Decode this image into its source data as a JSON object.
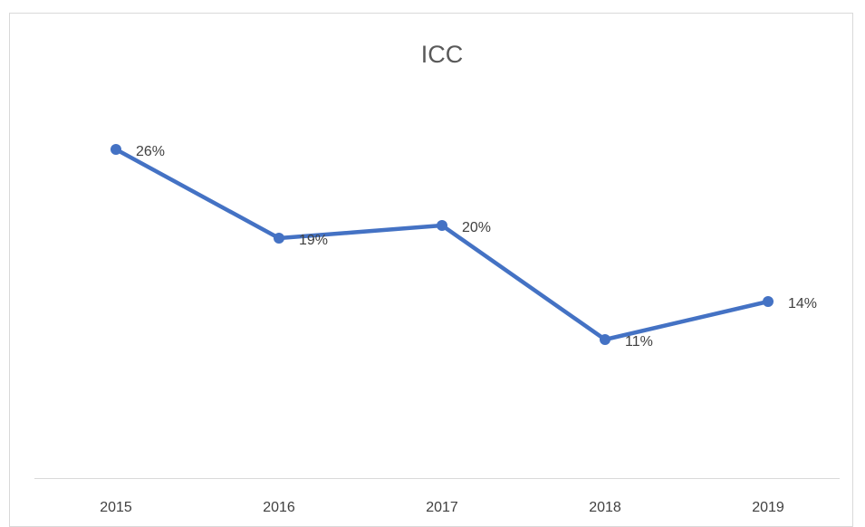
{
  "chart_data": {
    "type": "line",
    "title": "ICC",
    "categories": [
      "2015",
      "2016",
      "2017",
      "2018",
      "2019"
    ],
    "series": [
      {
        "name": "ICC",
        "color": "#4472c4",
        "values": [
          26,
          19,
          20,
          11,
          14
        ],
        "value_labels": [
          "26%",
          "19%",
          "20%",
          "11%",
          "14%"
        ]
      }
    ],
    "ylim": [
      0,
      30
    ]
  }
}
